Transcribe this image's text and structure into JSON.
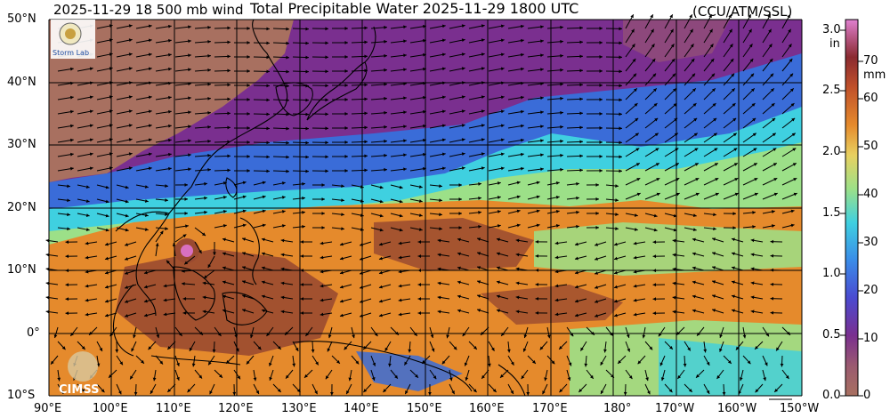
{
  "header": {
    "left_text": "2025-11-29 18 500 mb wind",
    "center_text": "Total Precipitable Water  2025-11-29 1800 UTC",
    "right_text": "(CCU/ATM/SSL)"
  },
  "map": {
    "lat_labels": [
      "50°N",
      "40°N",
      "30°N",
      "20°N",
      "10°N",
      "0°",
      "10°S"
    ],
    "lon_labels": [
      "90°E",
      "100°E",
      "110°E",
      "120°E",
      "130°E",
      "140°E",
      "150°E",
      "160°E",
      "170°E",
      "180°",
      "170°W",
      "160°W",
      "150°W"
    ],
    "colors": {
      "dry": "#a87060",
      "purple": "#7a2f8f",
      "blue": "#3a6cd8",
      "cyan": "#3fd0e0",
      "green": "#9ce088",
      "orange": "#e58a2c",
      "brown": "#9a4a30",
      "pink": "#d870c0"
    }
  },
  "colorbar": {
    "unit_in": "in",
    "unit_mm": "mm",
    "ticks_in": [
      "3.0",
      "2.5",
      "2.0",
      "1.5",
      "1.0",
      "0.5",
      "0.0"
    ],
    "ticks_mm": [
      "70",
      "60",
      "50",
      "40",
      "30",
      "20",
      "10",
      "0"
    ]
  },
  "logos": {
    "top_logo_text": "Storm Lab",
    "bottom_logo_text": "CIMSS"
  }
}
